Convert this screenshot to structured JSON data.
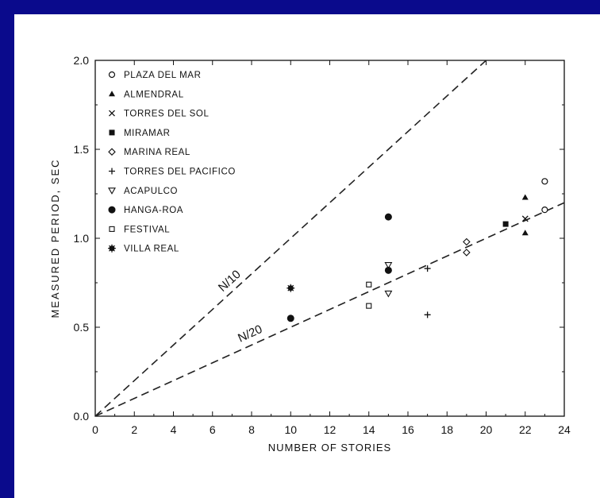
{
  "chart_data": {
    "type": "scatter",
    "xlabel": "NUMBER OF STORIES",
    "ylabel": "MEASURED PERIOD, SEC",
    "xlim": [
      0,
      24
    ],
    "ylim": [
      0,
      2.0
    ],
    "xticks": [
      0,
      2,
      4,
      6,
      8,
      10,
      12,
      14,
      16,
      18,
      20,
      22,
      24
    ],
    "yticks": [
      "0.0",
      "0.5",
      "1.0",
      "1.5",
      "2.0"
    ],
    "grid": false,
    "legend_position": "top-left",
    "series": [
      {
        "name": "PLAZA DEL MAR",
        "marker": "circle-open",
        "points": [
          [
            23,
            1.32
          ],
          [
            23,
            1.16
          ]
        ]
      },
      {
        "name": "ALMENDRAL",
        "marker": "triangle-filled",
        "points": [
          [
            22,
            1.23
          ],
          [
            22,
            1.03
          ]
        ]
      },
      {
        "name": "TORRES DEL SOL",
        "marker": "x",
        "points": [
          [
            22,
            1.11
          ]
        ]
      },
      {
        "name": "MIRAMAR",
        "marker": "square-filled",
        "points": [
          [
            21,
            1.08
          ]
        ]
      },
      {
        "name": "MARINA REAL",
        "marker": "diamond-open",
        "points": [
          [
            19,
            0.98
          ],
          [
            19,
            0.92
          ]
        ]
      },
      {
        "name": "TORRES DEL PACIFICO",
        "marker": "plus",
        "points": [
          [
            17,
            0.83
          ],
          [
            17,
            0.57
          ]
        ]
      },
      {
        "name": "ACAPULCO",
        "marker": "triangle-down-open",
        "points": [
          [
            15,
            0.85
          ],
          [
            15,
            0.69
          ]
        ]
      },
      {
        "name": "HANGA-ROA",
        "marker": "circle-filled",
        "points": [
          [
            15,
            1.12
          ],
          [
            15,
            0.82
          ],
          [
            10,
            0.55
          ]
        ]
      },
      {
        "name": "FESTIVAL",
        "marker": "square-open",
        "points": [
          [
            14,
            0.74
          ],
          [
            14,
            0.62
          ]
        ]
      },
      {
        "name": "VILLA REAL",
        "marker": "star-filled",
        "points": [
          [
            10,
            0.72
          ]
        ]
      }
    ],
    "reference_lines": [
      {
        "label": "N/10",
        "slope": 0.1
      },
      {
        "label": "N/20",
        "slope": 0.05
      }
    ]
  }
}
